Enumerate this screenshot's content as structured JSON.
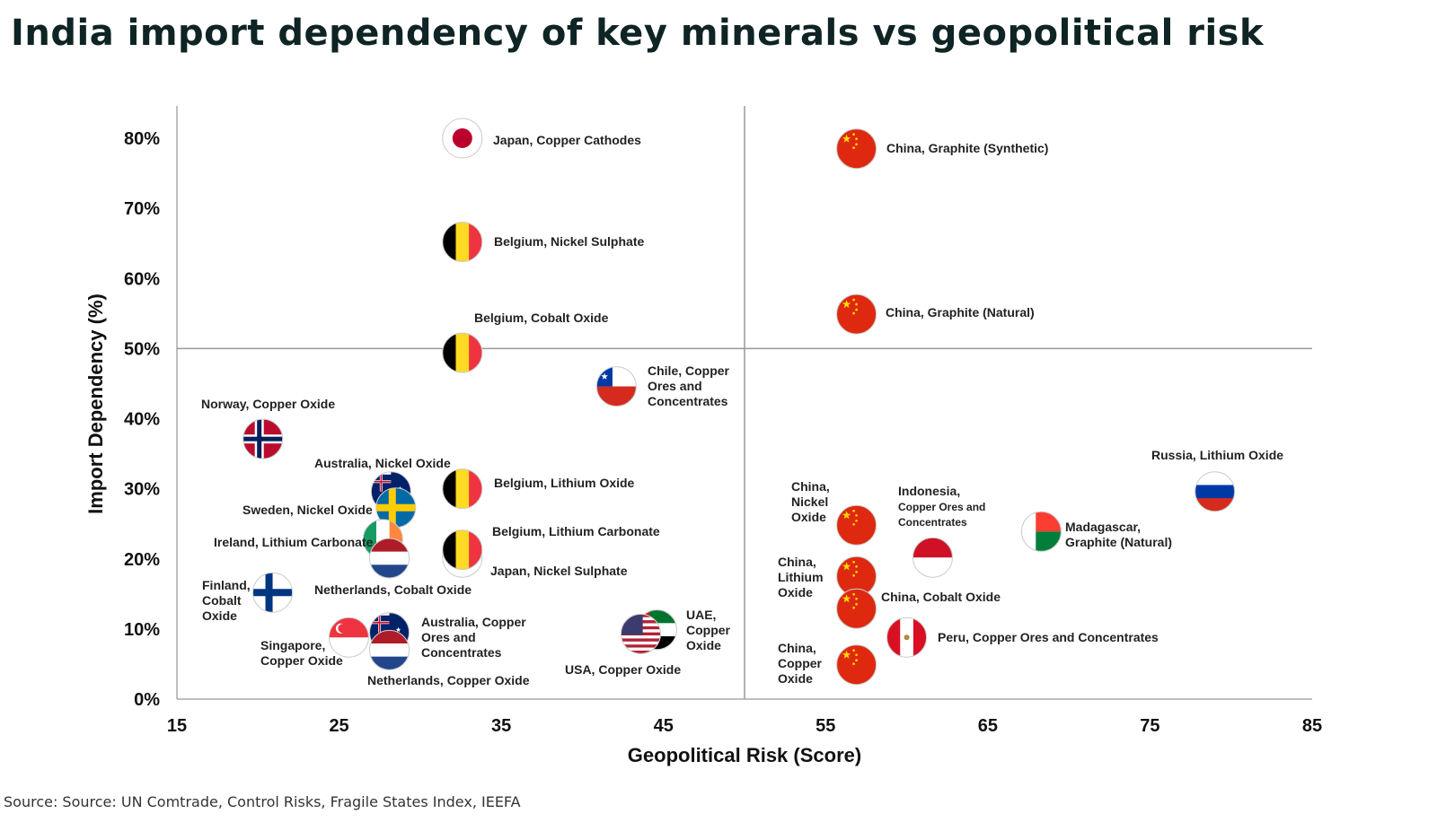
{
  "title": "India import dependency of key minerals vs geopolitical risk",
  "source": "Source: Source: UN Comtrade, Control Risks, Fragile States Index, IEEFA",
  "chart_data": {
    "type": "scatter",
    "title": "India import dependency of key minerals vs geopolitical risk",
    "xlabel": "Geopolitical Risk (Score)",
    "ylabel": "Import Dependency (%)",
    "xlim": [
      15,
      85
    ],
    "ylim": [
      0,
      80
    ],
    "xticks": [
      "15",
      "25",
      "35",
      "45",
      "55",
      "65",
      "75",
      "85"
    ],
    "yticks": [
      "0%",
      "10%",
      "20%",
      "30%",
      "40%",
      "50%",
      "60%",
      "70%",
      "80%"
    ],
    "reference_lines": {
      "x": 50,
      "y": 50
    },
    "grid": false,
    "marker": "country flag",
    "points": [
      {
        "country": "Japan",
        "mineral": "Copper Cathodes",
        "x": 32.6,
        "y": 80,
        "flag": "japan",
        "label_lines": [
          "Japan, Copper Cathodes"
        ]
      },
      {
        "country": "China",
        "mineral": "Graphite (Synthetic)",
        "x": 56.9,
        "y": 78.5,
        "flag": "china",
        "label_lines": [
          "China, Graphite (Synthetic)"
        ]
      },
      {
        "country": "Belgium",
        "mineral": "Nickel Sulphate",
        "x": 32.6,
        "y": 65.2,
        "flag": "belgium",
        "label_lines": [
          "Belgium, Nickel Sulphate"
        ]
      },
      {
        "country": "China",
        "mineral": "Graphite (Natural)",
        "x": 56.9,
        "y": 54.9,
        "flag": "china",
        "label_lines": [
          "China, Graphite (Natural)"
        ]
      },
      {
        "country": "Belgium",
        "mineral": "Cobalt Oxide",
        "x": 32.6,
        "y": 49.4,
        "flag": "belgium",
        "label_lines": [
          "Belgium, Cobalt Oxide"
        ]
      },
      {
        "country": "Chile",
        "mineral": "Copper Ores and Concentrates",
        "x": 42.1,
        "y": 44.6,
        "flag": "chile",
        "label_lines": [
          "Chile, Copper",
          "Ores and",
          "Concentrates"
        ]
      },
      {
        "country": "Norway",
        "mineral": "Copper Oxide",
        "x": 20.3,
        "y": 37.1,
        "flag": "norway",
        "label_lines": [
          "Norway, Copper Oxide"
        ]
      },
      {
        "country": "Australia",
        "mineral": "Nickel Oxide",
        "x": 28.2,
        "y": 29.6,
        "flag": "australia",
        "label_lines": [
          "Australia, Nickel Oxide"
        ]
      },
      {
        "country": "Sweden",
        "mineral": "Nickel Oxide",
        "x": 28.5,
        "y": 27.3,
        "flag": "sweden",
        "label_lines": [
          "Sweden, Nickel Oxide"
        ]
      },
      {
        "country": "Belgium",
        "mineral": "Lithium Oxide",
        "x": 32.6,
        "y": 30,
        "flag": "belgium",
        "label_lines": [
          "Belgium, Lithium Oxide"
        ]
      },
      {
        "country": "Ireland",
        "mineral": "Lithium Carbonate",
        "x": 27.7,
        "y": 22.8,
        "flag": "ireland",
        "label_lines": [
          "Ireland, Lithium Carbonate"
        ]
      },
      {
        "country": "Netherlands",
        "mineral": "Cobalt Oxide",
        "x": 28.1,
        "y": 20.1,
        "flag": "netherlands",
        "label_lines": [
          "Netherlands, Cobalt Oxide"
        ]
      },
      {
        "country": "Japan",
        "mineral": "Nickel Sulphate",
        "x": 32.6,
        "y": 20.2,
        "flag": "japan",
        "label_lines": [
          "Japan, Nickel Sulphate"
        ]
      },
      {
        "country": "Belgium",
        "mineral": "Lithium Carbonate",
        "x": 32.6,
        "y": 21.3,
        "flag": "belgium",
        "label_lines": [
          "Belgium, Lithium Carbonate"
        ]
      },
      {
        "country": "Finland",
        "mineral": "Cobalt Oxide",
        "x": 20.9,
        "y": 15.2,
        "flag": "finland",
        "label_lines": [
          "Finland,",
          "Cobalt",
          "Oxide"
        ]
      },
      {
        "country": "Singapore",
        "mineral": "Copper Oxide",
        "x": 25.6,
        "y": 8.8,
        "flag": "singapore",
        "label_lines": [
          "Singapore,",
          "Copper Oxide"
        ]
      },
      {
        "country": "Australia",
        "mineral": "Copper Ores and Concentrates",
        "x": 28.1,
        "y": 9.5,
        "flag": "australia",
        "label_lines": [
          "Australia, Copper",
          "Ores and",
          "Concentrates"
        ]
      },
      {
        "country": "Netherlands",
        "mineral": "Copper Oxide",
        "x": 28.1,
        "y": 7,
        "flag": "netherlands",
        "label_lines": [
          "Netherlands, Copper Oxide"
        ]
      },
      {
        "country": "UAE",
        "mineral": "Copper Oxide",
        "x": 44.6,
        "y": 9.9,
        "flag": "uae",
        "label_lines": [
          "UAE,",
          "Copper",
          "Oxide"
        ]
      },
      {
        "country": "USA",
        "mineral": "Copper Oxide",
        "x": 43.6,
        "y": 9.3,
        "flag": "usa",
        "label_lines": [
          "USA, Copper Oxide"
        ]
      },
      {
        "country": "China",
        "mineral": "Nickel Oxide",
        "x": 56.9,
        "y": 24.8,
        "flag": "china",
        "label_lines": [
          "China,",
          "Nickel",
          "Oxide"
        ]
      },
      {
        "country": "Indonesia",
        "mineral": "Copper Ores and Concentrates",
        "x": 61.6,
        "y": 20.2,
        "flag": "indonesia",
        "label_lines": [
          "Indonesia,",
          "Copper Ores and",
          "Concentrates"
        ]
      },
      {
        "country": "China",
        "mineral": "Lithium Oxide",
        "x": 56.9,
        "y": 17.5,
        "flag": "china",
        "label_lines": [
          "China,",
          "Lithium",
          "Oxide"
        ]
      },
      {
        "country": "China",
        "mineral": "Cobalt Oxide",
        "x": 56.9,
        "y": 12.9,
        "flag": "china",
        "label_lines": [
          "China, Cobalt Oxide"
        ]
      },
      {
        "country": "Peru",
        "mineral": "Copper Ores and Concentrates",
        "x": 60.0,
        "y": 8.8,
        "flag": "peru",
        "label_lines": [
          "Peru, Copper Ores and Concentrates"
        ]
      },
      {
        "country": "China",
        "mineral": "Copper Oxide",
        "x": 56.9,
        "y": 4.9,
        "flag": "china",
        "label_lines": [
          "China,",
          "Copper",
          "Oxide"
        ]
      },
      {
        "country": "Madagascar",
        "mineral": "Graphite (Natural)",
        "x": 68.3,
        "y": 23.9,
        "flag": "madagascar",
        "label_lines": [
          "Madagascar,",
          "Graphite (Natural)"
        ]
      },
      {
        "country": "Russia",
        "mineral": "Lithium Oxide",
        "x": 79.0,
        "y": 29.6,
        "flag": "russia",
        "label_lines": [
          "Russia, Lithium Oxide"
        ]
      }
    ]
  }
}
